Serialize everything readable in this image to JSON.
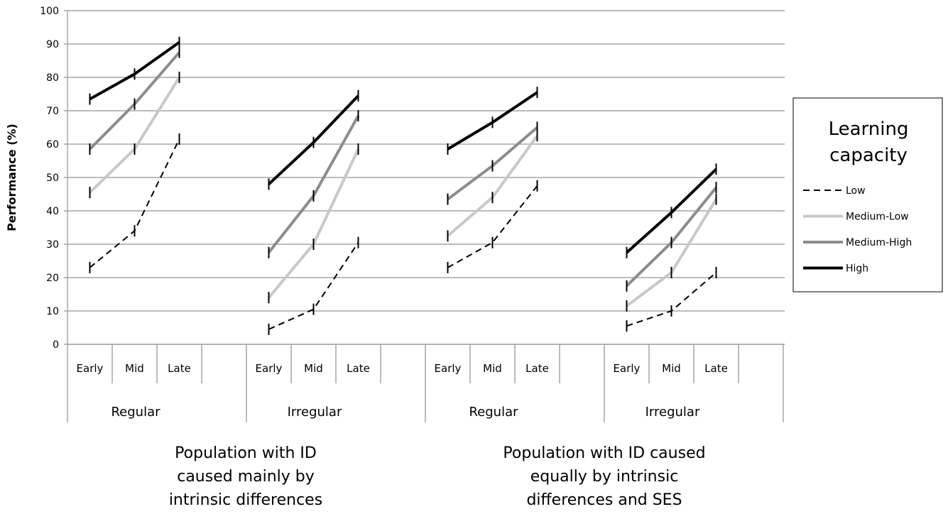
{
  "chart_data": {
    "type": "line",
    "ylabel": "Performance (%)",
    "ylim": [
      0,
      100
    ],
    "yticks": [
      "0",
      "10",
      "20",
      "30",
      "40",
      "50",
      "60",
      "70",
      "80",
      "90",
      "100"
    ],
    "grid": true,
    "legend_position": "right",
    "legend": {
      "title_line1": "Learning",
      "title_line2": "capacity"
    },
    "groups": [
      {
        "label": "Regular",
        "categories": [
          "Early",
          "Mid",
          "Late"
        ]
      },
      {
        "label": "Irregular",
        "categories": [
          "Early",
          "Mid",
          "Late"
        ]
      },
      {
        "label": "Regular",
        "categories": [
          "Early",
          "Mid",
          "Late"
        ]
      },
      {
        "label": "Irregular",
        "categories": [
          "Early",
          "Mid",
          "Late"
        ]
      }
    ],
    "populations": [
      {
        "line1": "Population with ID",
        "line2": "caused mainly by",
        "line3": "intrinsic differences"
      },
      {
        "line1": "Population with ID caused",
        "line2": "equally by intrinsic",
        "line3": "differences and SES"
      }
    ],
    "series": [
      {
        "name": "Low",
        "color": "#000000",
        "dash": true,
        "values": [
          [
            23,
            34,
            61.5
          ],
          [
            4.5,
            10.5,
            30.5
          ],
          [
            23,
            30.5,
            47.5
          ],
          [
            5.5,
            10,
            21.5
          ]
        ]
      },
      {
        "name": "Medium-Low",
        "color": "#c8c8c8",
        "dash": false,
        "values": [
          [
            45.5,
            58.5,
            80
          ],
          [
            14,
            30,
            58.5
          ],
          [
            32.5,
            44,
            62.5
          ],
          [
            11.5,
            21.5,
            43.5
          ]
        ]
      },
      {
        "name": "Medium-High",
        "color": "#8c8c8c",
        "dash": false,
        "values": [
          [
            58.5,
            72,
            87.5
          ],
          [
            27.5,
            44.5,
            68.5
          ],
          [
            43.5,
            53.5,
            65
          ],
          [
            17.5,
            30.5,
            47
          ]
        ]
      },
      {
        "name": "High",
        "color": "#000000",
        "dash": false,
        "values": [
          [
            73.5,
            81,
            90.5
          ],
          [
            48,
            60.5,
            74.5
          ],
          [
            58.5,
            66.5,
            75.5
          ],
          [
            27.5,
            39.5,
            52.5
          ]
        ]
      }
    ]
  }
}
